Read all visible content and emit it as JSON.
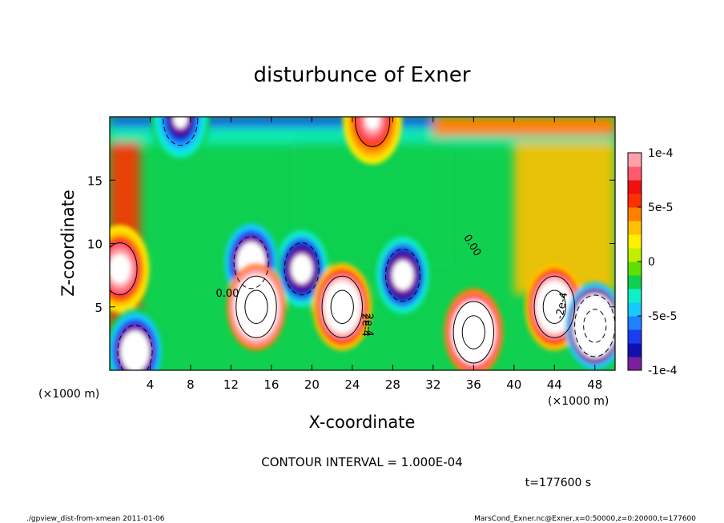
{
  "chart_data": {
    "type": "heatmap",
    "title": "disturbunce of Exner",
    "xlabel": "X-coordinate",
    "ylabel": "Z-coordinate",
    "x_unit": "(×1000 m)",
    "z_unit": "(×1000 m)",
    "xlim": [
      0,
      50
    ],
    "ylim": [
      0,
      20
    ],
    "x_ticks": [
      "4",
      "8",
      "12",
      "16",
      "20",
      "24",
      "28",
      "32",
      "36",
      "40",
      "44",
      "48"
    ],
    "x_tick_values": [
      4,
      8,
      12,
      16,
      20,
      24,
      28,
      32,
      36,
      40,
      44,
      48
    ],
    "y_ticks": [
      "5",
      "10",
      "15"
    ],
    "y_tick_values": [
      5,
      10,
      15
    ],
    "colorbar": {
      "range": [
        -0.0001,
        0.0001
      ],
      "tick_labels": [
        "1e-4",
        "5e-5",
        "0",
        "-5e-5",
        "-1e-4"
      ],
      "tick_values": [
        0.0001,
        5e-05,
        0,
        -5e-05,
        -0.0001
      ],
      "colors": [
        "#7b1fa0",
        "#1010b0",
        "#1c3cf0",
        "#1e82ff",
        "#18c8ff",
        "#10f0c8",
        "#10d050",
        "#60e000",
        "#c0f000",
        "#fff000",
        "#ffc000",
        "#ff8000",
        "#ff3000",
        "#f01010",
        "#ff5a6e",
        "#ffa0a8"
      ]
    },
    "contour_labels": [
      "0.00",
      "0.00",
      "2e-4",
      "2e-4",
      "-2e-4"
    ],
    "contour_interval": "CONTOUR INTERVAL = 1.000E-04",
    "time": "t=177600 s",
    "features": [
      {
        "x": 14.5,
        "z": 5,
        "value": 0.0003
      },
      {
        "x": 23,
        "z": 5,
        "value": 0.0002
      },
      {
        "x": 29,
        "z": 7.5,
        "value": -0.00012
      },
      {
        "x": 19,
        "z": 8,
        "value": -0.00012
      },
      {
        "x": 14,
        "z": 8.5,
        "value": -0.00015
      },
      {
        "x": 36,
        "z": 3,
        "value": 0.00025
      },
      {
        "x": 44,
        "z": 5,
        "value": 0.0002
      },
      {
        "x": 48,
        "z": 3.5,
        "value": -0.0003
      },
      {
        "x": 1,
        "z": 8,
        "value": 0.00012
      },
      {
        "x": 2.5,
        "z": 1.5,
        "value": -0.00015
      },
      {
        "x": 26,
        "z": 19.7,
        "value": 0.0001
      },
      {
        "x": 7,
        "z": 19.8,
        "value": -0.0001
      }
    ]
  },
  "footer": {
    "left": "./gpview_dist-from-xmean  2011-01-06",
    "right": "MarsCond_Exner.nc@Exner,x=0:50000,z=0:20000,t=177600"
  }
}
